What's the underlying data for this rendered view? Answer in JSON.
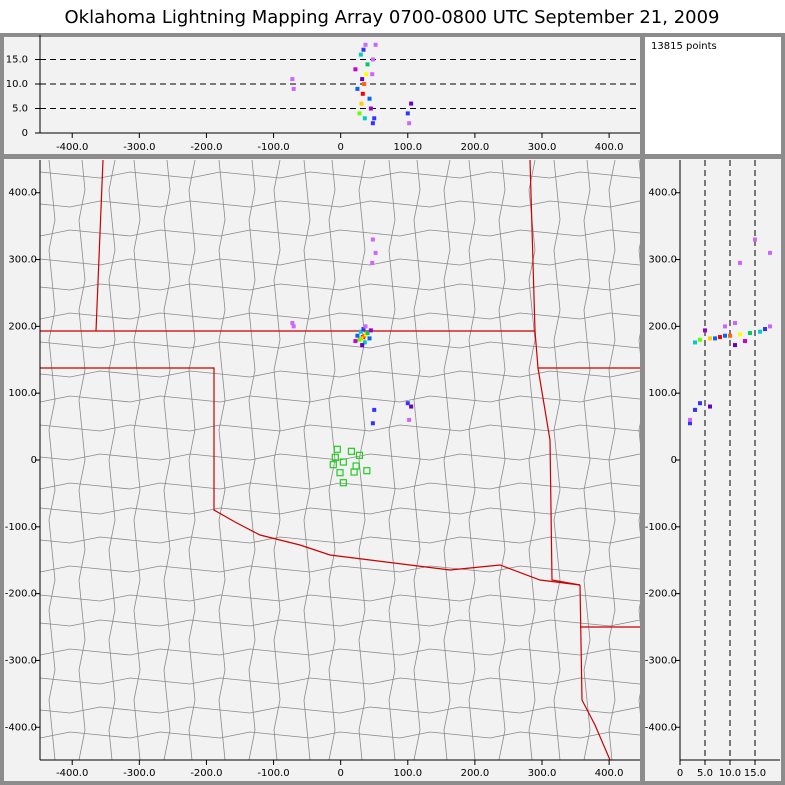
{
  "chart_data": {
    "type": "lma",
    "title": "Oklahoma Lightning Mapping Array   0700-0800 UTC  September 21, 2009",
    "points_label": "13815 points",
    "xlim": [
      -448,
      446
    ],
    "ylim": [
      -449,
      449
    ],
    "zlim": [
      0,
      20
    ],
    "xticks": [
      {
        "value": -400,
        "label": "-400.0"
      },
      {
        "value": -300,
        "label": "-300.0"
      },
      {
        "value": -200,
        "label": "-200.0"
      },
      {
        "value": -100,
        "label": "-100.0"
      },
      0,
      {
        "value": 100,
        "label": "100.0"
      },
      {
        "value": 200,
        "label": "200.0"
      },
      {
        "value": 300,
        "label": "300.0"
      },
      {
        "value": 400,
        "label": "400.0"
      }
    ],
    "yticks": [
      {
        "value": -400,
        "label": "-400.0"
      },
      {
        "value": -300,
        "label": "-300.0"
      },
      {
        "value": -200,
        "label": "-200.0"
      },
      {
        "value": -100,
        "label": "-100.0"
      },
      0,
      {
        "value": 100,
        "label": "100.0"
      },
      {
        "value": 200,
        "label": "200.0"
      },
      {
        "value": 300,
        "label": "300.0"
      },
      {
        "value": 400,
        "label": "400.0"
      }
    ],
    "zticks": [
      0,
      {
        "value": 5,
        "label": "5.0"
      },
      {
        "value": 10,
        "label": "10.0"
      },
      {
        "value": 15,
        "label": "15.0"
      }
    ],
    "altitude_guides": true,
    "sources": {
      "x": [
        33,
        35,
        31,
        38,
        28,
        40,
        30,
        36,
        25,
        43,
        34,
        32,
        45,
        22,
        37,
        48,
        52,
        47,
        -70,
        -72,
        105,
        100,
        50,
        48,
        102
      ],
      "y": [
        184,
        186,
        182,
        188,
        180,
        190,
        192,
        176,
        186,
        182,
        196,
        172,
        194,
        178,
        200,
        330,
        310,
        295,
        200,
        205,
        80,
        85,
        75,
        55,
        60
      ],
      "z": [
        8,
        10,
        6,
        12,
        4,
        14,
        16,
        3,
        9,
        7,
        17,
        11,
        5,
        13,
        18,
        15,
        18,
        12,
        9,
        11,
        6,
        4,
        3,
        2,
        2
      ],
      "colors": [
        "#ff0000",
        "#ff6600",
        "#ffcc00",
        "#ffff00",
        "#66ff00",
        "#00cc66",
        "#00cccc",
        "#00cccc",
        "#0066ff",
        "#0066ff",
        "#3333ff",
        "#6600cc",
        "#9900cc",
        "#cc00cc",
        "#cc66ff",
        "#cc66ff",
        "#cc66ff",
        "#cc66ff",
        "#cc66ff",
        "#cc66ff",
        "#6600cc",
        "#3333ff",
        "#3333ff",
        "#3333ff",
        "#cc66ff"
      ]
    },
    "stations": {
      "x": [
        -5,
        16,
        -8,
        4,
        28,
        -11,
        23,
        39,
        -1,
        20,
        4
      ],
      "y": [
        16,
        13,
        4,
        -3,
        7,
        -7,
        -9,
        -16,
        -19,
        -18,
        -34
      ],
      "color": "#22cc22"
    }
  }
}
